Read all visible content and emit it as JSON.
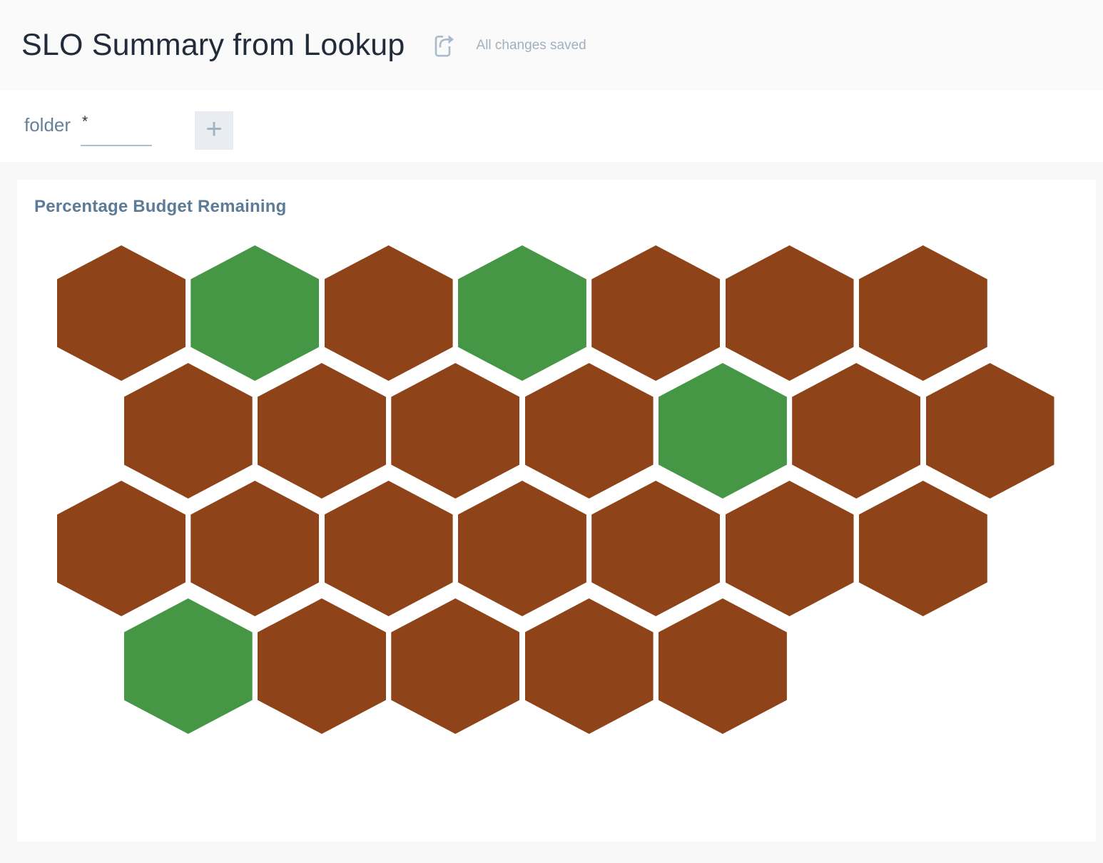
{
  "header": {
    "title": "SLO Summary from Lookup",
    "status": "All changes saved"
  },
  "token_input": {
    "label": "folder",
    "required_marker": "*",
    "value": "",
    "add_button_label": "+"
  },
  "panel": {
    "title": "Percentage Budget Remaining"
  },
  "chart_data": {
    "type": "heatmap",
    "variant": "honeycomb-hexbin",
    "title": "Percentage Budget Remaining",
    "legend": "none",
    "colors": {
      "brown": "#8e4318",
      "green": "#459645"
    },
    "rows": [
      {
        "offset": false,
        "cells": [
          "brown",
          "green",
          "brown",
          "green",
          "brown",
          "brown",
          "brown"
        ]
      },
      {
        "offset": true,
        "cells": [
          "brown",
          "brown",
          "brown",
          "brown",
          "green",
          "brown",
          "brown"
        ]
      },
      {
        "offset": false,
        "cells": [
          "brown",
          "brown",
          "brown",
          "brown",
          "brown",
          "brown",
          "brown"
        ]
      },
      {
        "offset": true,
        "cells": [
          "green",
          "brown",
          "brown",
          "brown",
          "brown"
        ]
      }
    ]
  },
  "ui_colors": {
    "header_bg": "#fafafb",
    "page_bg": "#f8f8f9",
    "panel_bg": "#ffffff",
    "title_text": "#222b3a",
    "muted_text": "#a3b0c0",
    "label_text": "#67809a",
    "panel_title_text": "#5b7b97",
    "underline": "#abc0d4",
    "button_bg": "#e9edf1",
    "button_glyph": "#9fb2c4"
  }
}
